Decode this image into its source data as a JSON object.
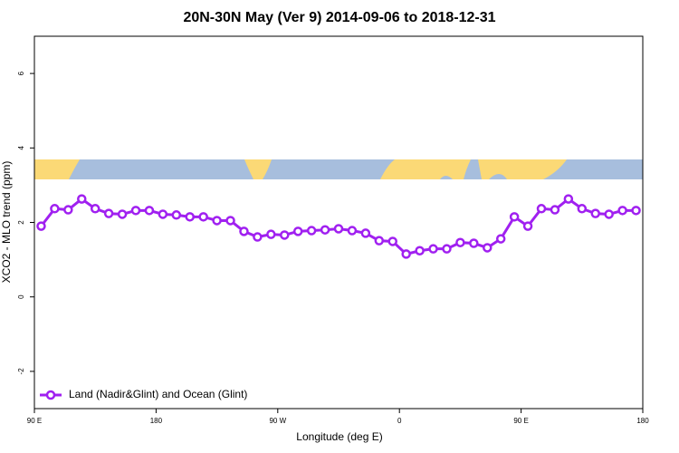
{
  "chart_data": {
    "type": "line",
    "title": "20N-30N May (Ver 9)   2014-09-06 to 2018-12-31",
    "x_label": "Longitude (deg E)",
    "y_label": "XCO2 - MLO trend (ppm)",
    "x": [
      95,
      105,
      115,
      125,
      135,
      145,
      155,
      165,
      175,
      185,
      195,
      205,
      215,
      225,
      235,
      245,
      255,
      265,
      275,
      285,
      295,
      305,
      315,
      325,
      335,
      345,
      355,
      365,
      375,
      385,
      395,
      405,
      415,
      425,
      435,
      445,
      455,
      465,
      475,
      485,
      495,
      505,
      515,
      525,
      535
    ],
    "series": [
      {
        "name": "Land (Nadir&Glint) and Ocean (Glint)",
        "color": "#a020f0",
        "values": [
          1.9,
          2.37,
          2.34,
          2.63,
          2.37,
          2.24,
          2.22,
          2.32,
          2.32,
          2.22,
          2.2,
          2.15,
          2.15,
          2.05,
          2.05,
          1.76,
          1.61,
          1.68,
          1.66,
          1.76,
          1.78,
          1.8,
          1.83,
          1.78,
          1.71,
          1.51,
          1.49,
          1.15,
          1.24,
          1.29,
          1.29,
          1.46,
          1.44,
          1.32,
          1.56,
          2.15,
          1.9,
          2.37,
          2.34,
          2.63,
          2.37,
          2.24,
          2.22,
          2.32,
          2.32
        ]
      }
    ],
    "xlim": [
      90,
      540
    ],
    "xticks": [
      {
        "value": 90,
        "label": "90 E"
      },
      {
        "value": 180,
        "label": "180"
      },
      {
        "value": 270,
        "label": "90 W"
      },
      {
        "value": 360,
        "label": "0"
      },
      {
        "value": 450,
        "label": "90 E"
      },
      {
        "value": 540,
        "label": "180"
      }
    ],
    "ylim": [
      -3,
      7
    ],
    "yticks": [
      -2,
      0,
      2,
      4,
      6
    ],
    "legend": "bottom-left"
  }
}
